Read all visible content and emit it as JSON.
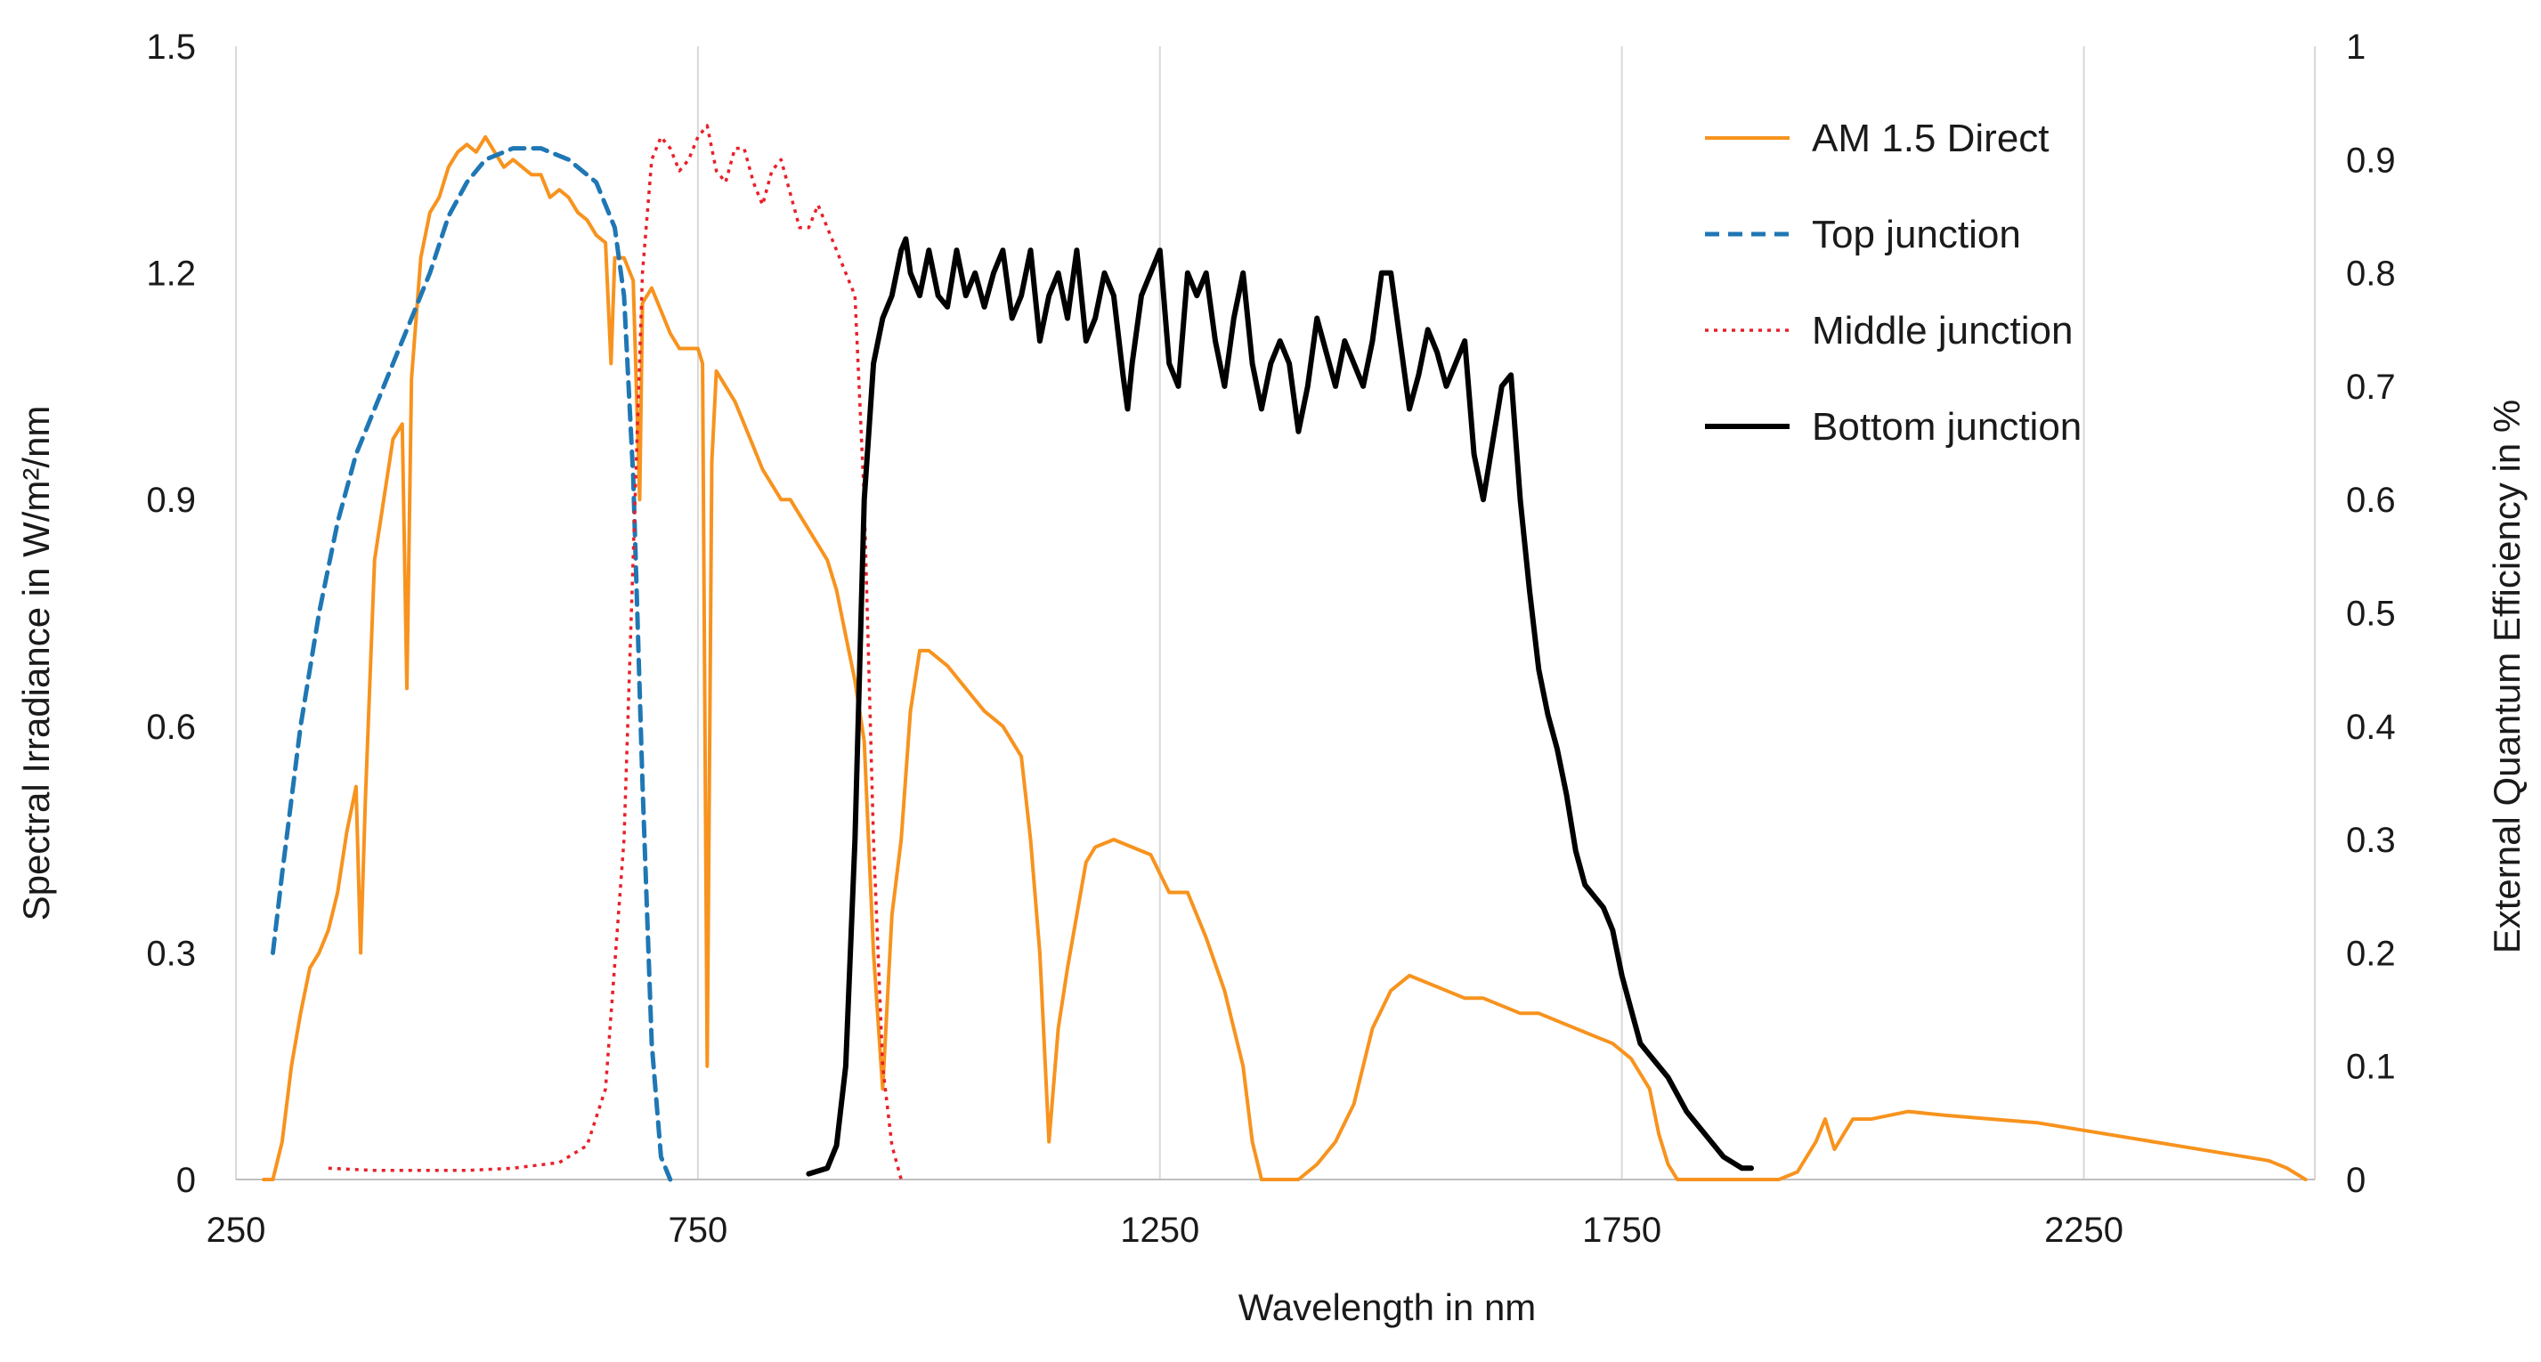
{
  "chart_data": {
    "type": "line",
    "title": "",
    "xlabel": "Wavelength in nm",
    "ylabel_left": "Spectral Irradiance in W/m²/nm",
    "ylabel_right": "External Quantum Efficiency in %",
    "xlim": [
      250,
      2500
    ],
    "ylim_left": [
      0,
      1.5
    ],
    "ylim_right": [
      0,
      1
    ],
    "x_ticks": [
      "250",
      "750",
      "1250",
      "1750",
      "2250"
    ],
    "y_left_ticks": [
      "0",
      "0.3",
      "0.6",
      "0.9",
      "1.2",
      "1.5"
    ],
    "y_right_ticks": [
      "0",
      "0.1",
      "0.2",
      "0.3",
      "0.4",
      "0.5",
      "0.6",
      "0.7",
      "0.8",
      "0.9",
      "1"
    ],
    "grid": "vertical",
    "legend_position": "top-right",
    "series": [
      {
        "name": "AM 1.5 Direct",
        "axis": "left",
        "color": "#f7931e",
        "style": "solid",
        "points": [
          [
            280,
            0
          ],
          [
            290,
            0.0
          ],
          [
            300,
            0.05
          ],
          [
            310,
            0.15
          ],
          [
            320,
            0.22
          ],
          [
            330,
            0.28
          ],
          [
            340,
            0.3
          ],
          [
            350,
            0.33
          ],
          [
            360,
            0.38
          ],
          [
            370,
            0.46
          ],
          [
            380,
            0.52
          ],
          [
            385,
            0.3
          ],
          [
            390,
            0.5
          ],
          [
            400,
            0.82
          ],
          [
            410,
            0.9
          ],
          [
            420,
            0.98
          ],
          [
            430,
            1.0
          ],
          [
            435,
            0.65
          ],
          [
            440,
            1.06
          ],
          [
            450,
            1.22
          ],
          [
            460,
            1.28
          ],
          [
            470,
            1.3
          ],
          [
            480,
            1.34
          ],
          [
            490,
            1.36
          ],
          [
            500,
            1.37
          ],
          [
            510,
            1.36
          ],
          [
            520,
            1.38
          ],
          [
            530,
            1.36
          ],
          [
            540,
            1.34
          ],
          [
            550,
            1.35
          ],
          [
            560,
            1.34
          ],
          [
            570,
            1.33
          ],
          [
            580,
            1.33
          ],
          [
            590,
            1.3
          ],
          [
            600,
            1.31
          ],
          [
            610,
            1.3
          ],
          [
            620,
            1.28
          ],
          [
            630,
            1.27
          ],
          [
            640,
            1.25
          ],
          [
            650,
            1.24
          ],
          [
            656,
            1.08
          ],
          [
            660,
            1.22
          ],
          [
            670,
            1.22
          ],
          [
            680,
            1.19
          ],
          [
            687,
            0.9
          ],
          [
            690,
            1.16
          ],
          [
            700,
            1.18
          ],
          [
            710,
            1.15
          ],
          [
            720,
            1.12
          ],
          [
            730,
            1.1
          ],
          [
            740,
            1.1
          ],
          [
            750,
            1.1
          ],
          [
            755,
            1.08
          ],
          [
            760,
            0.15
          ],
          [
            765,
            0.95
          ],
          [
            770,
            1.07
          ],
          [
            780,
            1.05
          ],
          [
            790,
            1.03
          ],
          [
            800,
            1.0
          ],
          [
            810,
            0.97
          ],
          [
            820,
            0.94
          ],
          [
            830,
            0.92
          ],
          [
            840,
            0.9
          ],
          [
            850,
            0.9
          ],
          [
            860,
            0.88
          ],
          [
            870,
            0.86
          ],
          [
            880,
            0.84
          ],
          [
            890,
            0.82
          ],
          [
            900,
            0.78
          ],
          [
            910,
            0.72
          ],
          [
            920,
            0.66
          ],
          [
            930,
            0.58
          ],
          [
            940,
            0.3
          ],
          [
            950,
            0.12
          ],
          [
            960,
            0.35
          ],
          [
            970,
            0.45
          ],
          [
            980,
            0.62
          ],
          [
            990,
            0.7
          ],
          [
            1000,
            0.7
          ],
          [
            1020,
            0.68
          ],
          [
            1040,
            0.65
          ],
          [
            1060,
            0.62
          ],
          [
            1080,
            0.6
          ],
          [
            1100,
            0.56
          ],
          [
            1110,
            0.45
          ],
          [
            1120,
            0.3
          ],
          [
            1130,
            0.05
          ],
          [
            1140,
            0.2
          ],
          [
            1150,
            0.28
          ],
          [
            1160,
            0.35
          ],
          [
            1170,
            0.42
          ],
          [
            1180,
            0.44
          ],
          [
            1200,
            0.45
          ],
          [
            1220,
            0.44
          ],
          [
            1240,
            0.43
          ],
          [
            1260,
            0.38
          ],
          [
            1280,
            0.38
          ],
          [
            1300,
            0.32
          ],
          [
            1320,
            0.25
          ],
          [
            1340,
            0.15
          ],
          [
            1350,
            0.05
          ],
          [
            1360,
            0.0
          ],
          [
            1400,
            0.0
          ],
          [
            1420,
            0.02
          ],
          [
            1440,
            0.05
          ],
          [
            1460,
            0.1
          ],
          [
            1480,
            0.2
          ],
          [
            1500,
            0.25
          ],
          [
            1520,
            0.27
          ],
          [
            1540,
            0.26
          ],
          [
            1560,
            0.25
          ],
          [
            1580,
            0.24
          ],
          [
            1600,
            0.24
          ],
          [
            1620,
            0.23
          ],
          [
            1640,
            0.22
          ],
          [
            1660,
            0.22
          ],
          [
            1680,
            0.21
          ],
          [
            1700,
            0.2
          ],
          [
            1720,
            0.19
          ],
          [
            1740,
            0.18
          ],
          [
            1760,
            0.16
          ],
          [
            1780,
            0.12
          ],
          [
            1790,
            0.06
          ],
          [
            1800,
            0.02
          ],
          [
            1810,
            0.0
          ],
          [
            1920,
            0.0
          ],
          [
            1940,
            0.01
          ],
          [
            1960,
            0.05
          ],
          [
            1970,
            0.08
          ],
          [
            1980,
            0.04
          ],
          [
            1990,
            0.06
          ],
          [
            2000,
            0.08
          ],
          [
            2020,
            0.08
          ],
          [
            2060,
            0.09
          ],
          [
            2100,
            0.085
          ],
          [
            2150,
            0.08
          ],
          [
            2200,
            0.075
          ],
          [
            2250,
            0.065
          ],
          [
            2300,
            0.055
          ],
          [
            2350,
            0.045
          ],
          [
            2400,
            0.035
          ],
          [
            2450,
            0.025
          ],
          [
            2470,
            0.015
          ],
          [
            2490,
            0.0
          ]
        ]
      },
      {
        "name": "Top junction",
        "axis": "right",
        "color": "#1f77b4",
        "style": "dashed",
        "points": [
          [
            290,
            0.2
          ],
          [
            300,
            0.27
          ],
          [
            320,
            0.4
          ],
          [
            340,
            0.5
          ],
          [
            360,
            0.58
          ],
          [
            380,
            0.64
          ],
          [
            400,
            0.68
          ],
          [
            420,
            0.72
          ],
          [
            440,
            0.76
          ],
          [
            460,
            0.8
          ],
          [
            480,
            0.85
          ],
          [
            500,
            0.88
          ],
          [
            520,
            0.9
          ],
          [
            550,
            0.91
          ],
          [
            580,
            0.91
          ],
          [
            610,
            0.9
          ],
          [
            640,
            0.88
          ],
          [
            660,
            0.84
          ],
          [
            670,
            0.78
          ],
          [
            680,
            0.62
          ],
          [
            690,
            0.35
          ],
          [
            700,
            0.12
          ],
          [
            710,
            0.02
          ],
          [
            720,
            0.0
          ]
        ]
      },
      {
        "name": "Middle junction",
        "axis": "right",
        "color": "#e8202a",
        "style": "dotted",
        "points": [
          [
            350,
            0.01
          ],
          [
            400,
            0.008
          ],
          [
            450,
            0.008
          ],
          [
            500,
            0.008
          ],
          [
            550,
            0.01
          ],
          [
            600,
            0.015
          ],
          [
            630,
            0.03
          ],
          [
            650,
            0.08
          ],
          [
            670,
            0.3
          ],
          [
            680,
            0.55
          ],
          [
            690,
            0.8
          ],
          [
            700,
            0.9
          ],
          [
            710,
            0.92
          ],
          [
            720,
            0.91
          ],
          [
            730,
            0.89
          ],
          [
            740,
            0.9
          ],
          [
            750,
            0.92
          ],
          [
            760,
            0.93
          ],
          [
            770,
            0.89
          ],
          [
            780,
            0.88
          ],
          [
            790,
            0.91
          ],
          [
            800,
            0.91
          ],
          [
            810,
            0.88
          ],
          [
            820,
            0.86
          ],
          [
            830,
            0.89
          ],
          [
            840,
            0.9
          ],
          [
            850,
            0.87
          ],
          [
            860,
            0.84
          ],
          [
            870,
            0.84
          ],
          [
            880,
            0.86
          ],
          [
            890,
            0.84
          ],
          [
            900,
            0.82
          ],
          [
            910,
            0.8
          ],
          [
            920,
            0.78
          ],
          [
            930,
            0.6
          ],
          [
            940,
            0.3
          ],
          [
            950,
            0.1
          ],
          [
            960,
            0.03
          ],
          [
            970,
            0.0
          ]
        ]
      },
      {
        "name": "Bottom junction",
        "axis": "right",
        "color": "#000000",
        "style": "solid",
        "points": [
          [
            870,
            0.005
          ],
          [
            890,
            0.01
          ],
          [
            900,
            0.03
          ],
          [
            910,
            0.1
          ],
          [
            920,
            0.3
          ],
          [
            930,
            0.6
          ],
          [
            940,
            0.72
          ],
          [
            950,
            0.76
          ],
          [
            960,
            0.78
          ],
          [
            970,
            0.82
          ],
          [
            975,
            0.83
          ],
          [
            980,
            0.8
          ],
          [
            990,
            0.78
          ],
          [
            1000,
            0.82
          ],
          [
            1010,
            0.78
          ],
          [
            1020,
            0.77
          ],
          [
            1030,
            0.82
          ],
          [
            1040,
            0.78
          ],
          [
            1050,
            0.8
          ],
          [
            1060,
            0.77
          ],
          [
            1070,
            0.8
          ],
          [
            1080,
            0.82
          ],
          [
            1090,
            0.76
          ],
          [
            1100,
            0.78
          ],
          [
            1110,
            0.82
          ],
          [
            1120,
            0.74
          ],
          [
            1130,
            0.78
          ],
          [
            1140,
            0.8
          ],
          [
            1150,
            0.76
          ],
          [
            1160,
            0.82
          ],
          [
            1170,
            0.74
          ],
          [
            1180,
            0.76
          ],
          [
            1190,
            0.8
          ],
          [
            1200,
            0.78
          ],
          [
            1210,
            0.71
          ],
          [
            1215,
            0.68
          ],
          [
            1220,
            0.72
          ],
          [
            1230,
            0.78
          ],
          [
            1240,
            0.8
          ],
          [
            1250,
            0.82
          ],
          [
            1260,
            0.72
          ],
          [
            1270,
            0.7
          ],
          [
            1280,
            0.8
          ],
          [
            1290,
            0.78
          ],
          [
            1300,
            0.8
          ],
          [
            1310,
            0.74
          ],
          [
            1320,
            0.7
          ],
          [
            1330,
            0.76
          ],
          [
            1340,
            0.8
          ],
          [
            1350,
            0.72
          ],
          [
            1360,
            0.68
          ],
          [
            1370,
            0.72
          ],
          [
            1380,
            0.74
          ],
          [
            1390,
            0.72
          ],
          [
            1400,
            0.66
          ],
          [
            1410,
            0.7
          ],
          [
            1420,
            0.76
          ],
          [
            1430,
            0.73
          ],
          [
            1440,
            0.7
          ],
          [
            1450,
            0.74
          ],
          [
            1460,
            0.72
          ],
          [
            1470,
            0.7
          ],
          [
            1480,
            0.74
          ],
          [
            1490,
            0.8
          ],
          [
            1500,
            0.8
          ],
          [
            1510,
            0.74
          ],
          [
            1520,
            0.68
          ],
          [
            1530,
            0.71
          ],
          [
            1540,
            0.75
          ],
          [
            1550,
            0.73
          ],
          [
            1560,
            0.7
          ],
          [
            1570,
            0.72
          ],
          [
            1580,
            0.74
          ],
          [
            1590,
            0.64
          ],
          [
            1600,
            0.6
          ],
          [
            1610,
            0.65
          ],
          [
            1620,
            0.7
          ],
          [
            1630,
            0.71
          ],
          [
            1640,
            0.6
          ],
          [
            1650,
            0.52
          ],
          [
            1660,
            0.45
          ],
          [
            1670,
            0.41
          ],
          [
            1680,
            0.38
          ],
          [
            1690,
            0.34
          ],
          [
            1700,
            0.29
          ],
          [
            1710,
            0.26
          ],
          [
            1720,
            0.25
          ],
          [
            1730,
            0.24
          ],
          [
            1740,
            0.22
          ],
          [
            1750,
            0.18
          ],
          [
            1760,
            0.15
          ],
          [
            1770,
            0.12
          ],
          [
            1780,
            0.11
          ],
          [
            1790,
            0.1
          ],
          [
            1800,
            0.09
          ],
          [
            1820,
            0.06
          ],
          [
            1840,
            0.04
          ],
          [
            1860,
            0.02
          ],
          [
            1880,
            0.01
          ],
          [
            1890,
            0.01
          ]
        ]
      }
    ]
  }
}
